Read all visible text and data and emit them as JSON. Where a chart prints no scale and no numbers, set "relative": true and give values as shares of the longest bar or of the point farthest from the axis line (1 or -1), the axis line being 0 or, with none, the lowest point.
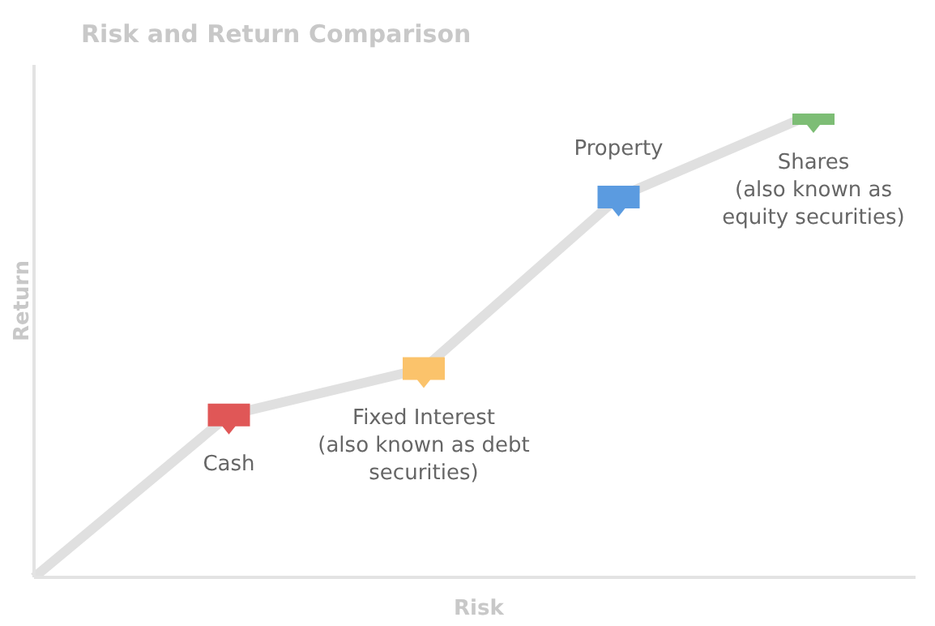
{
  "chart_data": {
    "type": "line",
    "title": "Risk and Return Comparison",
    "xlabel": "Risk",
    "ylabel": "Return",
    "relative": true,
    "marker": "square",
    "categories": [
      null,
      null,
      null,
      null,
      null
    ],
    "series": [
      {
        "color": "#e0e0e0",
        "values": [
          0,
          0.35,
          0.45,
          0.82,
          1
        ],
        "colors": [
          null,
          "#e05757",
          "#fbc36b",
          "#5b9be0",
          "#7dbd75"
        ]
      }
    ],
    "annotations": [
      "Cash",
      "Fixed Interest\n(also known as debt\nsecurities)",
      "Property",
      "Shares\n(also known as\nequity securities)"
    ]
  }
}
